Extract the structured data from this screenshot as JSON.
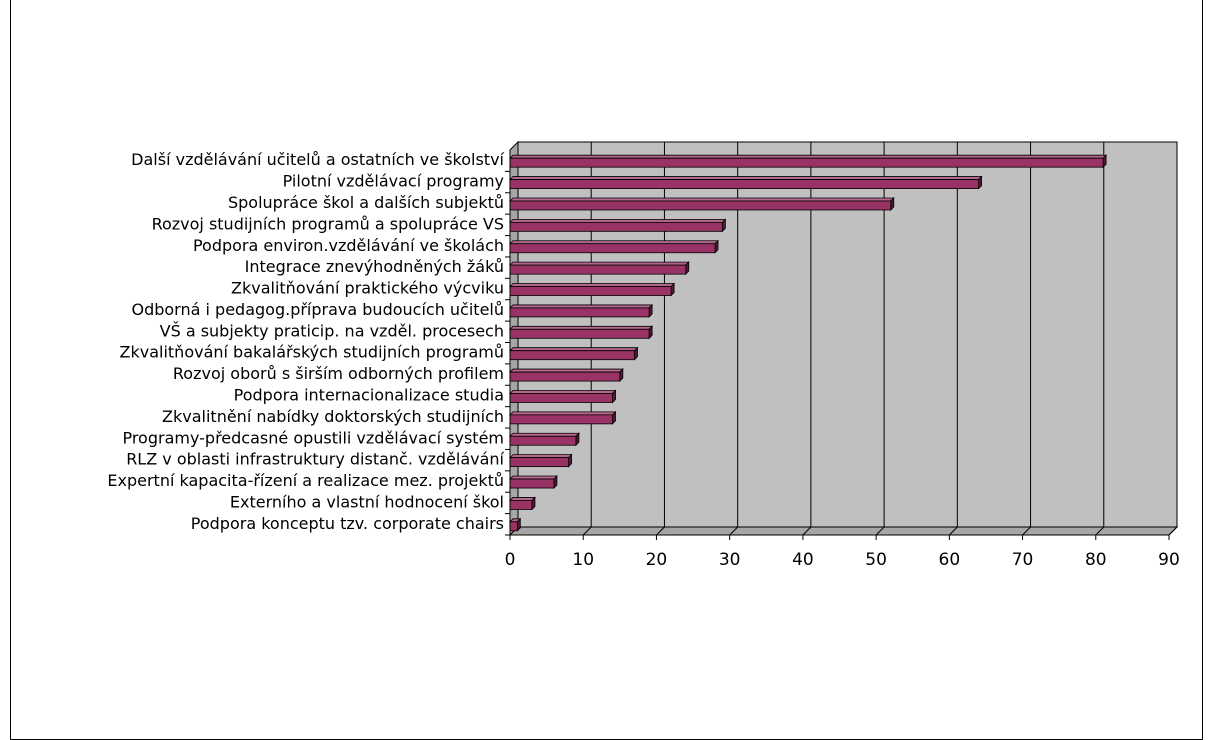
{
  "chart_data": {
    "type": "bar",
    "orientation": "horizontal",
    "categories": [
      "Další vzdělávání učitelů a ostatních ve školství",
      "Pilotní vzdělávací programy",
      "Spolupráce škol a dalších subjektů",
      "Rozvoj studijních programů a spolupráce VS",
      "Podpora environ.vzdělávání ve školách",
      "Integrace znevýhodněných žáků",
      "Zkvalitňování praktického výcviku",
      "Odborná i pedagog.příprava budoucích učitelů",
      "VŠ a subjekty praticip. na vzděl. procesech",
      "Zkvalitňování bakalářských studijních programů",
      "Rozvoj oborů s širším odborných profilem",
      "Podpora internacionalizace studia",
      "Zkvalitnění nabídky doktorských studijních",
      "Programy-předcasné opustili vzdělávací systém",
      "RLZ v oblasti infrastruktury distanč. vzdělávání",
      "Expertní kapacita-řízení a realizace mez. projektů",
      "Externího a vlastní hodnocení škol",
      "Podpora konceptu tzv. corporate chairs"
    ],
    "values": [
      81,
      64,
      52,
      29,
      28,
      24,
      22,
      19,
      19,
      17,
      15,
      14,
      14,
      9,
      8,
      6,
      3,
      1
    ],
    "x_ticks": [
      "0",
      "10",
      "20",
      "30",
      "40",
      "50",
      "60",
      "70",
      "80",
      "90"
    ],
    "xlim": [
      0,
      90
    ],
    "grid": true,
    "legend": "none",
    "colors": {
      "bar_front": "#993366",
      "bar_top": "#b5668c",
      "bar_side": "#4d1a33",
      "plot_back": "#c0c0c0",
      "plot_floor": "#a6a6a6",
      "grid": "#000000"
    }
  }
}
